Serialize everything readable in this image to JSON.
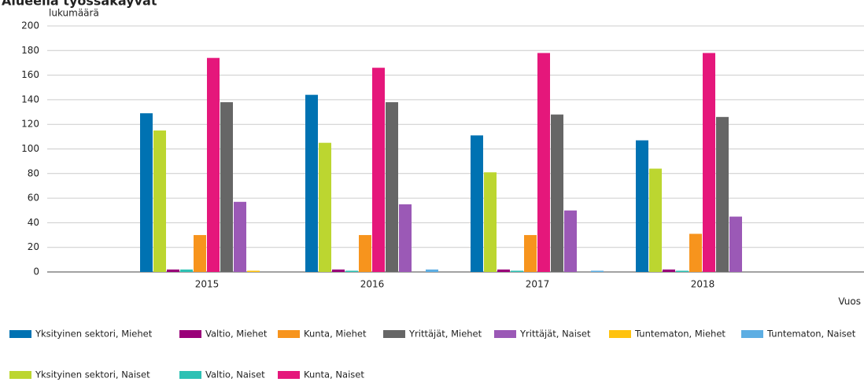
{
  "chart_data": {
    "type": "bar",
    "title": "Alueella työssäkäyvät",
    "y_label": "lukumäärä",
    "x_label": "Vuos",
    "categories": [
      "2015",
      "2016",
      "2017",
      "2018"
    ],
    "ylim": [
      0,
      200
    ],
    "yticks": [
      0,
      20,
      40,
      60,
      80,
      100,
      120,
      140,
      160,
      180,
      200
    ],
    "grid": true,
    "series": [
      {
        "name": "Yksityinen sektori, Miehet",
        "color": "#0072b2",
        "values": [
          129,
          144,
          111,
          107
        ]
      },
      {
        "name": "Yksityinen sektori, Naiset",
        "color": "#bcd630",
        "values": [
          115,
          105,
          81,
          84
        ]
      },
      {
        "name": "Valtio, Miehet",
        "color": "#9a0079",
        "values": [
          2,
          2,
          2,
          2
        ]
      },
      {
        "name": "Valtio, Naiset",
        "color": "#2dc1b4",
        "values": [
          2,
          1,
          1,
          1
        ]
      },
      {
        "name": "Kunta, Miehet",
        "color": "#f7941d",
        "values": [
          30,
          30,
          30,
          31
        ]
      },
      {
        "name": "Kunta, Naiset",
        "color": "#e5177b",
        "values": [
          174,
          166,
          178,
          178
        ]
      },
      {
        "name": "Yrittäjät, Miehet",
        "color": "#666666",
        "values": [
          138,
          138,
          128,
          126
        ]
      },
      {
        "name": "Yrittäjät, Naiset",
        "color": "#9b59b6",
        "values": [
          57,
          55,
          50,
          45
        ]
      },
      {
        "name": "Tuntematon, Miehet",
        "color": "#ffc20e",
        "values": [
          1,
          0,
          0,
          0
        ]
      },
      {
        "name": "Tuntematon, Naiset",
        "color": "#5daee3",
        "values": [
          0,
          2,
          1,
          0
        ]
      }
    ]
  }
}
